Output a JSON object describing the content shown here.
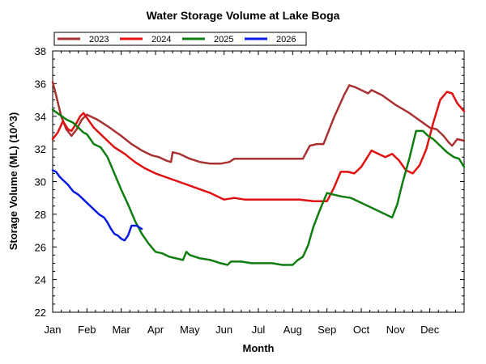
{
  "chart_data": {
    "type": "line",
    "title": "Water Storage Volume at Lake Boga",
    "xlabel": "Month",
    "ylabel": "Storage Volume (ML) (10^3)",
    "ylim": [
      22,
      38
    ],
    "xlim": [
      0,
      12
    ],
    "yticks": [
      22,
      24,
      26,
      28,
      30,
      32,
      34,
      36,
      38
    ],
    "categories": [
      "Jan",
      "Feb",
      "Mar",
      "Apr",
      "May",
      "Jun",
      "Jul",
      "Aug",
      "Sep",
      "Oct",
      "Nov",
      "Dec"
    ],
    "grid": false,
    "legend_position": "top-left",
    "series": [
      {
        "name": "2023",
        "color": "#a83232",
        "x": [
          0,
          0.1,
          0.25,
          0.4,
          0.55,
          0.7,
          0.85,
          1.0,
          1.3,
          1.6,
          2.0,
          2.3,
          2.6,
          2.9,
          3.1,
          3.3,
          3.45,
          3.5,
          3.7,
          4.0,
          4.3,
          4.6,
          4.9,
          5.15,
          5.3,
          5.6,
          6.0,
          6.4,
          6.8,
          7.0,
          7.15,
          7.3,
          7.5,
          7.7,
          7.9,
          8.2,
          8.5,
          8.65,
          8.8,
          9.0,
          9.2,
          9.3,
          9.6,
          10.0,
          10.4,
          10.8,
          11.0,
          11.2,
          11.4,
          11.55,
          11.65,
          11.8,
          12.0
        ],
        "values": [
          36.1,
          35.3,
          34.0,
          33.2,
          32.8,
          33.2,
          33.8,
          34.1,
          33.8,
          33.4,
          32.8,
          32.3,
          31.9,
          31.6,
          31.5,
          31.3,
          31.2,
          31.8,
          31.7,
          31.4,
          31.2,
          31.1,
          31.1,
          31.2,
          31.4,
          31.4,
          31.4,
          31.4,
          31.4,
          31.4,
          31.4,
          31.4,
          32.2,
          32.3,
          32.3,
          33.9,
          35.3,
          35.9,
          35.8,
          35.6,
          35.4,
          35.6,
          35.3,
          34.7,
          34.2,
          33.6,
          33.3,
          33.2,
          32.8,
          32.4,
          32.2,
          32.6,
          32.5
        ]
      },
      {
        "name": "2024",
        "color": "#e01010",
        "x": [
          0,
          0.15,
          0.3,
          0.45,
          0.55,
          0.7,
          0.8,
          0.9,
          1.0,
          1.2,
          1.5,
          1.8,
          2.1,
          2.4,
          2.7,
          3.0,
          3.4,
          3.8,
          4.2,
          4.6,
          4.9,
          5.0,
          5.3,
          5.6,
          6.0,
          6.4,
          6.8,
          7.2,
          7.6,
          8.0,
          8.2,
          8.4,
          8.6,
          8.8,
          9.0,
          9.15,
          9.3,
          9.5,
          9.7,
          9.9,
          10.1,
          10.3,
          10.5,
          10.7,
          10.9,
          11.1,
          11.3,
          11.5,
          11.65,
          11.8,
          12.0
        ],
        "values": [
          32.6,
          33.0,
          33.7,
          33.2,
          33.1,
          33.6,
          34.0,
          34.2,
          33.9,
          33.3,
          32.7,
          32.1,
          31.7,
          31.2,
          30.8,
          30.5,
          30.2,
          29.9,
          29.6,
          29.3,
          29.0,
          28.9,
          29.0,
          28.9,
          28.9,
          28.9,
          28.9,
          28.9,
          28.8,
          28.8,
          29.6,
          30.6,
          30.6,
          30.5,
          30.9,
          31.4,
          31.9,
          31.7,
          31.5,
          31.7,
          31.3,
          30.7,
          30.5,
          31.0,
          32.0,
          33.6,
          35.0,
          35.5,
          35.4,
          34.8,
          34.3
        ]
      },
      {
        "name": "2025",
        "color": "#0f7d0f",
        "x": [
          0,
          0.2,
          0.4,
          0.6,
          0.75,
          0.9,
          1.0,
          1.2,
          1.4,
          1.6,
          1.8,
          2.0,
          2.2,
          2.4,
          2.6,
          2.8,
          3.0,
          3.2,
          3.4,
          3.6,
          3.8,
          3.9,
          4.0,
          4.3,
          4.6,
          4.9,
          5.1,
          5.2,
          5.5,
          5.8,
          6.1,
          6.4,
          6.7,
          7.0,
          7.15,
          7.3,
          7.45,
          7.6,
          7.8,
          8.0,
          8.2,
          8.4,
          8.7,
          9.0,
          9.3,
          9.6,
          9.9,
          10.05,
          10.2,
          10.4,
          10.6,
          10.8,
          10.95,
          11.1,
          11.3,
          11.5,
          11.7,
          11.85,
          12.0
        ],
        "values": [
          34.4,
          34.1,
          33.8,
          33.6,
          33.3,
          33.0,
          32.9,
          32.3,
          32.1,
          31.5,
          30.5,
          29.5,
          28.6,
          27.6,
          26.8,
          26.2,
          25.7,
          25.6,
          25.4,
          25.3,
          25.2,
          25.7,
          25.5,
          25.3,
          25.2,
          25.0,
          24.9,
          25.1,
          25.1,
          25.0,
          25.0,
          25.0,
          24.9,
          24.9,
          25.2,
          25.4,
          26.1,
          27.2,
          28.3,
          29.3,
          29.2,
          29.1,
          29.0,
          28.7,
          28.4,
          28.1,
          27.8,
          28.6,
          29.9,
          31.4,
          33.1,
          33.1,
          32.8,
          32.6,
          32.2,
          31.8,
          31.5,
          31.4,
          30.9
        ]
      },
      {
        "name": "2026",
        "color": "#0a19e0",
        "x": [
          0,
          0.1,
          0.2,
          0.3,
          0.45,
          0.6,
          0.75,
          0.9,
          1.05,
          1.2,
          1.35,
          1.5,
          1.6,
          1.7,
          1.8,
          1.9,
          2.0,
          2.1,
          2.2,
          2.3,
          2.45,
          2.6
        ],
        "values": [
          30.7,
          30.6,
          30.3,
          30.1,
          29.8,
          29.4,
          29.2,
          28.9,
          28.6,
          28.3,
          28.0,
          27.8,
          27.5,
          27.1,
          26.8,
          26.7,
          26.5,
          26.4,
          26.7,
          27.3,
          27.3,
          27.1
        ]
      }
    ]
  }
}
